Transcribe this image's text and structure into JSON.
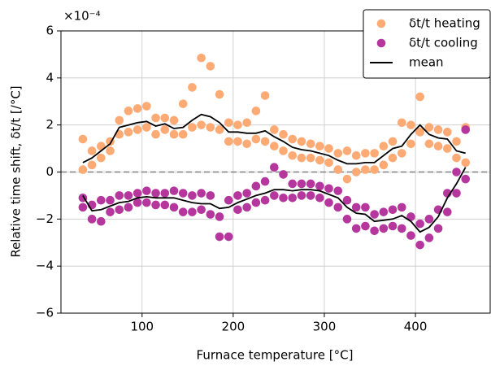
{
  "chart_data": {
    "type": "scatter",
    "y_label": "Relative time shift, δt/t [/°C]",
    "x_label": "Furnace temperature [°C]",
    "y_offset_label": "×10⁻⁴",
    "xlim": [
      11,
      482
    ],
    "ylim": [
      -6,
      6
    ],
    "xticks": [
      100,
      200,
      300,
      400
    ],
    "yticks": [
      {
        "value": -6,
        "label": "−6"
      },
      {
        "value": -4,
        "label": "−4"
      },
      {
        "value": -2,
        "label": "−2"
      },
      0,
      2,
      4,
      6
    ],
    "grid": true,
    "reference_line": 0,
    "legend": "upper right",
    "series": [
      {
        "name": "δt/t heating",
        "color": "#fdaa74",
        "type": "scatter",
        "x": [
          35,
          35,
          45,
          45,
          55,
          55,
          65,
          65,
          75,
          75,
          85,
          85,
          95,
          95,
          105,
          105,
          115,
          115,
          125,
          125,
          135,
          135,
          145,
          145,
          155,
          155,
          165,
          165,
          175,
          175,
          185,
          185,
          195,
          195,
          205,
          205,
          215,
          215,
          225,
          225,
          235,
          235,
          245,
          245,
          255,
          255,
          265,
          265,
          275,
          275,
          285,
          285,
          295,
          295,
          305,
          305,
          315,
          315,
          325,
          325,
          335,
          335,
          345,
          345,
          355,
          355,
          365,
          365,
          375,
          375,
          385,
          385,
          395,
          395,
          405,
          405,
          415,
          415,
          425,
          425,
          435,
          435,
          445,
          445,
          455,
          455
        ],
        "values": [
          0.1,
          1.4,
          0.3,
          0.9,
          0.6,
          1.1,
          0.9,
          1.3,
          1.6,
          2.2,
          1.7,
          2.6,
          1.8,
          2.7,
          1.9,
          2.8,
          1.6,
          2.3,
          1.8,
          2.3,
          1.6,
          2.2,
          1.6,
          2.9,
          1.9,
          3.6,
          2.0,
          4.85,
          1.9,
          4.5,
          1.8,
          3.3,
          1.3,
          2.1,
          1.3,
          2.0,
          1.2,
          2.1,
          1.4,
          2.6,
          1.3,
          3.25,
          1.1,
          1.8,
          0.9,
          1.6,
          0.7,
          1.4,
          0.6,
          1.3,
          0.6,
          1.2,
          0.5,
          1.1,
          0.4,
          1.0,
          0.1,
          0.8,
          -0.3,
          0.9,
          0.0,
          0.7,
          0.1,
          0.8,
          0.1,
          0.8,
          0.3,
          1.1,
          0.6,
          1.3,
          0.8,
          2.1,
          1.2,
          2.0,
          1.7,
          3.2,
          1.2,
          1.9,
          1.1,
          1.8,
          1.0,
          1.7,
          0.6,
          1.3,
          0.4,
          1.9
        ]
      },
      {
        "name": "δt/t cooling",
        "color": "#b5379d",
        "type": "scatter",
        "x": [
          35,
          35,
          45,
          45,
          55,
          55,
          65,
          65,
          75,
          75,
          85,
          85,
          95,
          95,
          105,
          105,
          115,
          115,
          125,
          125,
          135,
          135,
          145,
          145,
          155,
          155,
          165,
          165,
          175,
          175,
          185,
          185,
          195,
          195,
          205,
          205,
          215,
          215,
          225,
          225,
          235,
          235,
          245,
          245,
          255,
          255,
          265,
          265,
          275,
          275,
          285,
          285,
          295,
          295,
          305,
          305,
          315,
          315,
          325,
          325,
          335,
          335,
          345,
          345,
          355,
          355,
          365,
          365,
          375,
          375,
          385,
          385,
          395,
          395,
          405,
          405,
          415,
          415,
          425,
          425,
          435,
          435,
          445,
          445,
          455,
          455
        ],
        "values": [
          -1.5,
          -1.1,
          -2.0,
          -1.4,
          -2.1,
          -1.2,
          -1.7,
          -1.2,
          -1.6,
          -1.0,
          -1.5,
          -1.0,
          -1.3,
          -0.9,
          -1.3,
          -0.8,
          -1.4,
          -0.9,
          -1.4,
          -0.9,
          -1.5,
          -0.8,
          -1.7,
          -0.9,
          -1.7,
          -1.0,
          -1.6,
          -0.9,
          -1.8,
          -1.0,
          -2.75,
          -1.9,
          -2.75,
          -1.2,
          -1.6,
          -1.0,
          -1.5,
          -0.9,
          -1.3,
          -0.6,
          -1.2,
          -0.4,
          -1.0,
          0.2,
          -1.1,
          -0.1,
          -1.1,
          -0.5,
          -1.0,
          -0.5,
          -1.0,
          -0.5,
          -1.1,
          -0.6,
          -1.3,
          -0.7,
          -1.5,
          -0.8,
          -2.0,
          -1.2,
          -2.4,
          -1.5,
          -2.3,
          -1.5,
          -2.5,
          -1.8,
          -2.4,
          -1.7,
          -2.3,
          -1.6,
          -2.4,
          -1.5,
          -2.7,
          -1.9,
          -3.1,
          -2.2,
          -2.8,
          -2.0,
          -2.4,
          -1.6,
          -1.7,
          -0.9,
          -0.9,
          0.0,
          -0.3,
          1.8
        ]
      },
      {
        "name": "mean",
        "color": "#000000",
        "type": "line",
        "x": [
          35,
          45,
          55,
          65,
          75,
          85,
          95,
          105,
          115,
          125,
          135,
          145,
          155,
          165,
          175,
          185,
          195,
          205,
          215,
          225,
          235,
          245,
          255,
          265,
          275,
          285,
          295,
          305,
          315,
          325,
          335,
          345,
          355,
          365,
          375,
          385,
          395,
          405,
          415,
          425,
          435,
          445,
          455
        ],
        "values": [
          0.4,
          0.6,
          0.9,
          1.2,
          1.9,
          2.0,
          2.1,
          2.15,
          1.95,
          2.05,
          1.85,
          1.9,
          2.2,
          2.45,
          2.35,
          2.1,
          1.7,
          1.7,
          1.65,
          1.65,
          1.75,
          1.5,
          1.3,
          1.05,
          0.95,
          0.9,
          0.8,
          0.7,
          0.5,
          0.35,
          0.35,
          0.4,
          0.4,
          0.7,
          1.0,
          1.1,
          1.6,
          2.0,
          1.6,
          1.45,
          1.4,
          0.9,
          0.8
        ]
      },
      {
        "name": "mean",
        "color": "#000000",
        "type": "line",
        "legend": false,
        "x": [
          35,
          45,
          55,
          65,
          75,
          85,
          95,
          105,
          115,
          125,
          135,
          145,
          155,
          165,
          175,
          185,
          195,
          205,
          215,
          225,
          235,
          245,
          255,
          265,
          275,
          285,
          295,
          305,
          315,
          325,
          335,
          345,
          355,
          365,
          375,
          385,
          395,
          405,
          415,
          425,
          435,
          445,
          455
        ],
        "values": [
          -1.0,
          -1.65,
          -1.6,
          -1.45,
          -1.3,
          -1.25,
          -1.1,
          -1.05,
          -1.1,
          -1.1,
          -1.1,
          -1.2,
          -1.3,
          -1.35,
          -1.35,
          -1.55,
          -1.5,
          -1.3,
          -1.15,
          -1.0,
          -0.9,
          -0.75,
          -0.75,
          -0.8,
          -0.75,
          -0.75,
          -0.8,
          -0.95,
          -1.1,
          -1.5,
          -1.75,
          -1.8,
          -2.1,
          -2.05,
          -2.0,
          -1.85,
          -2.1,
          -2.55,
          -2.35,
          -1.9,
          -1.1,
          -0.5,
          0.2
        ]
      }
    ]
  }
}
